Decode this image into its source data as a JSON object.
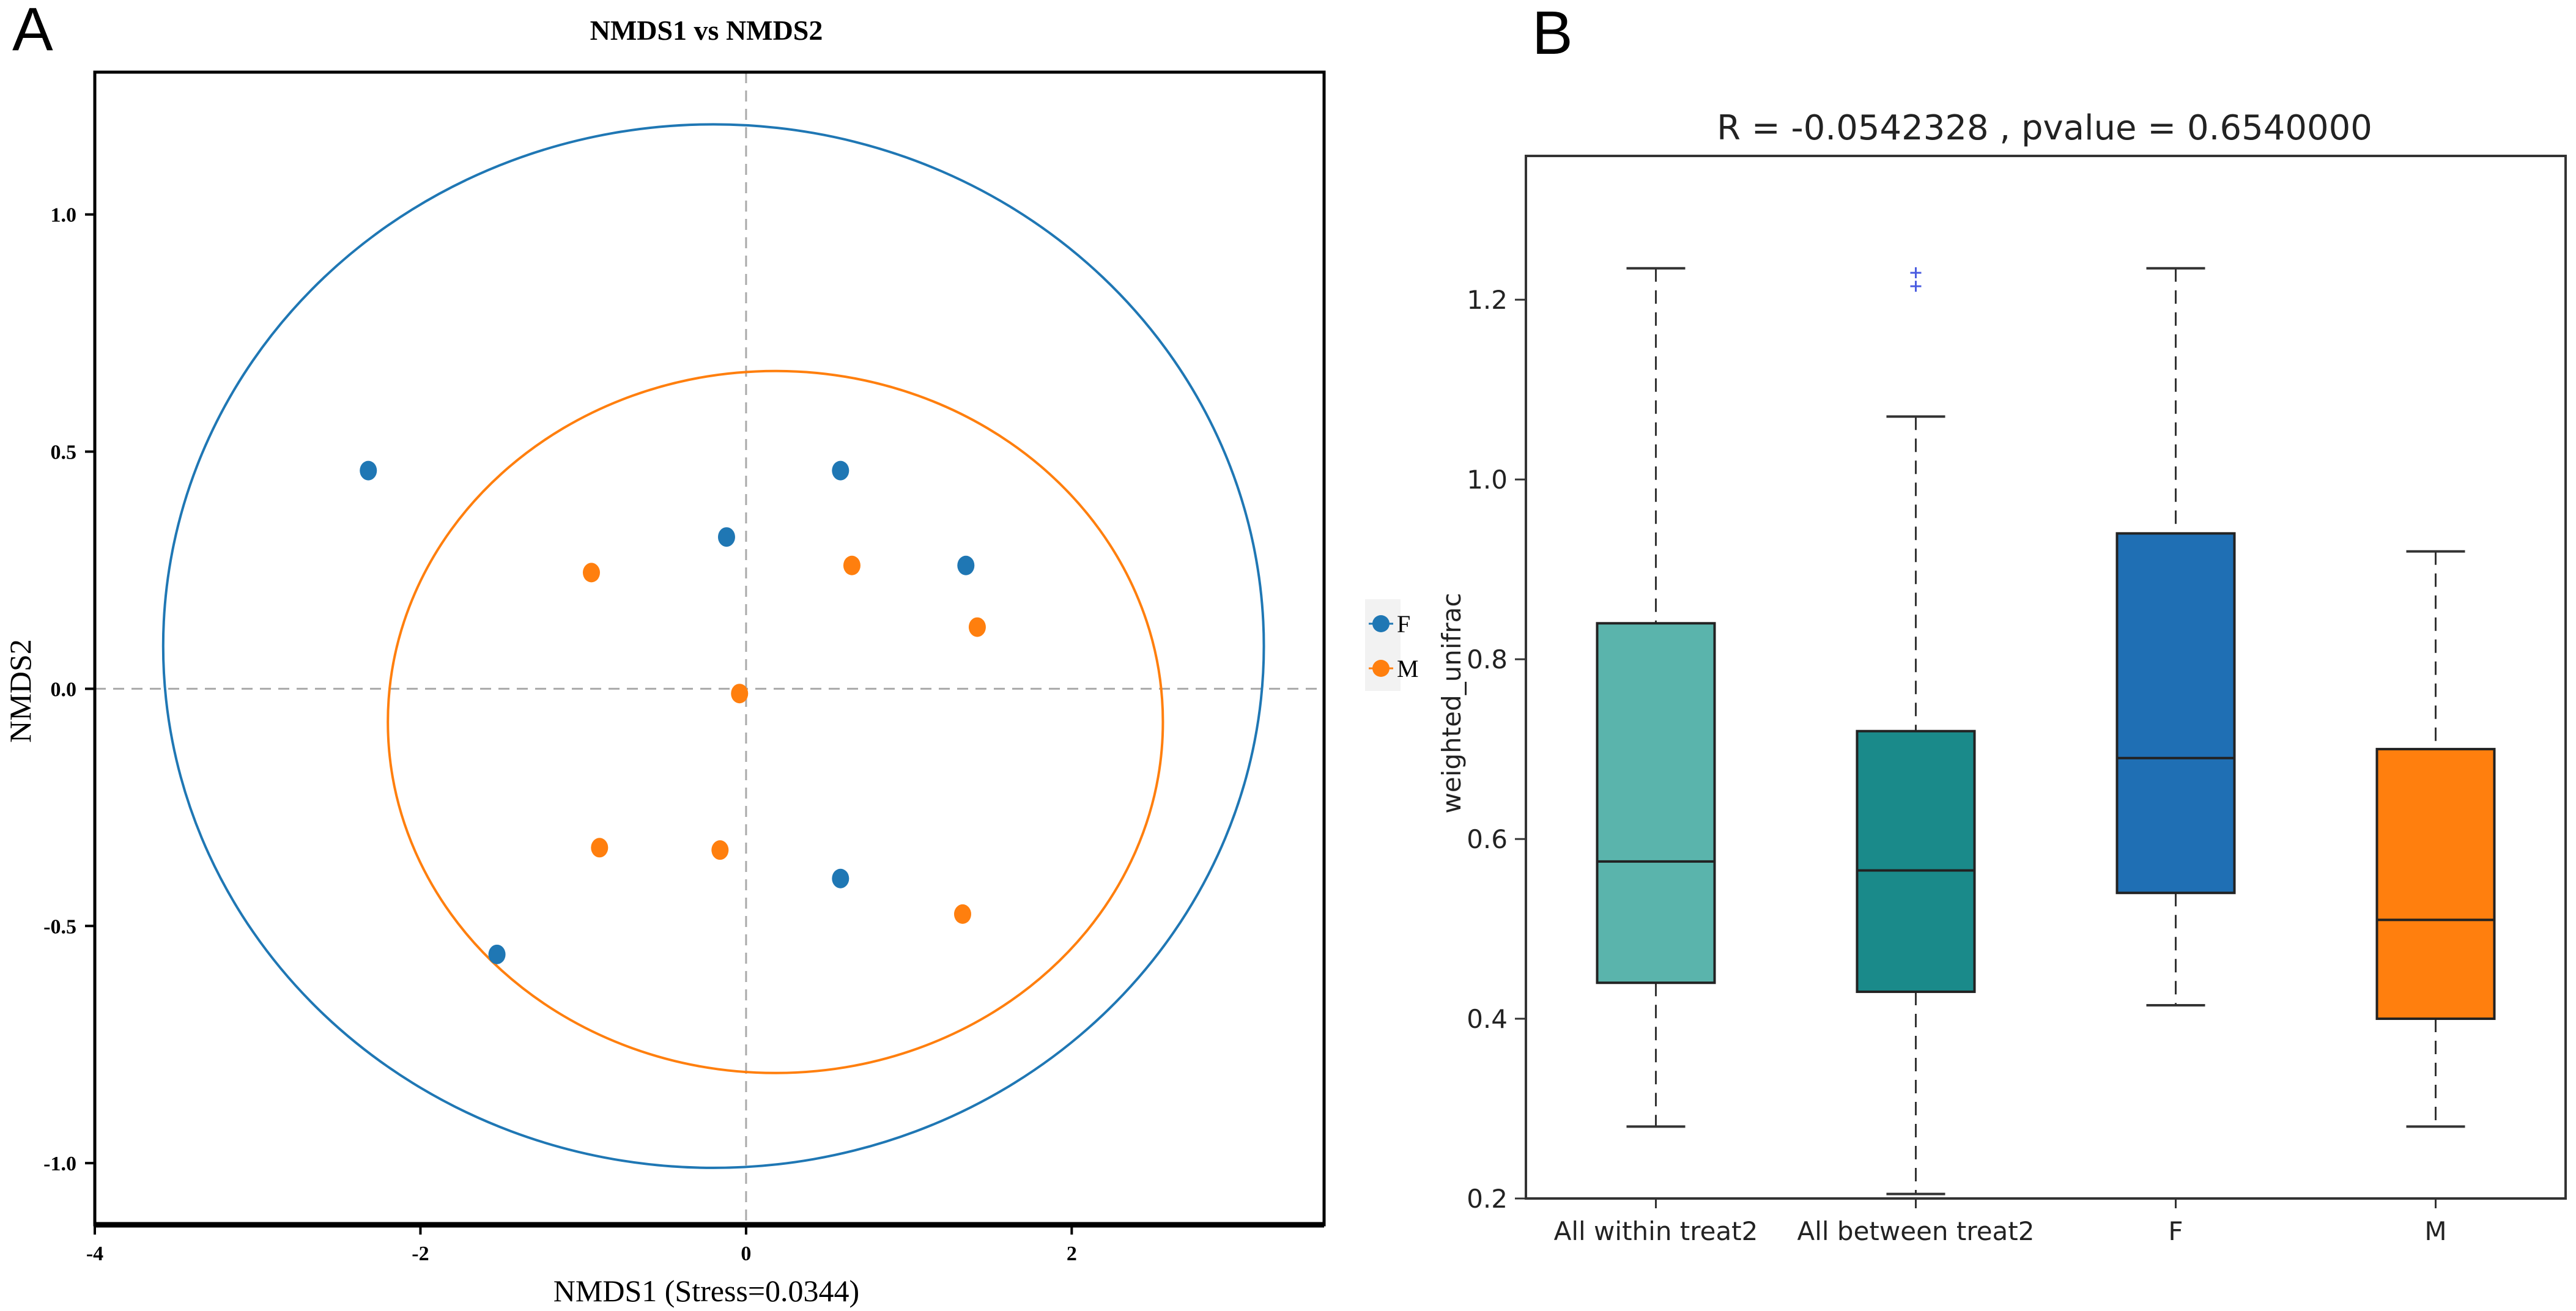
{
  "chart_data": [
    {
      "panel": "A",
      "type": "scatter",
      "title": "NMDS1 vs NMDS2",
      "xlabel": "NMDS1 (Stress=0.0344)",
      "ylabel": "NMDS2",
      "xlim": [
        -4,
        3.55
      ],
      "ylim": [
        -1.13,
        1.3
      ],
      "xticks": [
        -4,
        -2,
        0,
        2
      ],
      "xtick_labels": [
        "-4",
        "-2",
        "0",
        "2"
      ],
      "yticks": [
        -1.0,
        -0.5,
        0.0,
        0.5,
        1.0
      ],
      "ytick_labels": [
        "-1.0",
        "-0.5",
        "0.0",
        "0.5",
        "1.0"
      ],
      "reference_lines": {
        "x": 0,
        "y": 0,
        "style": "dashed"
      },
      "legend": {
        "placement": "right",
        "entries": [
          "F",
          "M"
        ]
      },
      "series": [
        {
          "name": "F",
          "color": "#1f77b4",
          "points": [
            [
              -2.32,
              0.46
            ],
            [
              0.58,
              0.46
            ],
            [
              -0.12,
              0.32
            ],
            [
              1.35,
              0.26
            ],
            [
              0.58,
              -0.4
            ],
            [
              -1.53,
              -0.56
            ]
          ],
          "ellipse": {
            "cx": -0.2,
            "cy": 0.09,
            "rx": 3.38,
            "ry": 1.1
          }
        },
        {
          "name": "M",
          "color": "#ff7f0e",
          "points": [
            [
              -0.95,
              0.245
            ],
            [
              0.65,
              0.26
            ],
            [
              1.42,
              0.13
            ],
            [
              -0.04,
              -0.01
            ],
            [
              -0.9,
              -0.335
            ],
            [
              -0.16,
              -0.34
            ],
            [
              1.33,
              -0.475
            ]
          ],
          "ellipse": {
            "cx": 0.18,
            "cy": -0.07,
            "rx": 2.38,
            "ry": 0.74
          }
        }
      ]
    },
    {
      "panel": "B",
      "type": "box",
      "title": "R = -0.0542328 , pvalue = 0.6540000",
      "xlabel": "",
      "ylabel": "weighted_unifrac",
      "ylim": [
        0.2,
        1.36
      ],
      "yticks": [
        0.2,
        0.4,
        0.6,
        0.8,
        1.0,
        1.2
      ],
      "ytick_labels": [
        "0.2",
        "0.4",
        "0.6",
        "0.8",
        "1.0",
        "1.2"
      ],
      "categories": [
        "All within treat2",
        "All between treat2",
        "F",
        "M"
      ],
      "boxes": [
        {
          "name": "All within treat2",
          "color": "#5ab4ac",
          "whislo": 0.28,
          "q1": 0.44,
          "median": 0.575,
          "q3": 0.84,
          "whishi": 1.235,
          "fliers": []
        },
        {
          "name": "All between treat2",
          "color": "#1a8a8a",
          "whislo": 0.205,
          "q1": 0.43,
          "median": 0.565,
          "q3": 0.72,
          "whishi": 1.07,
          "fliers": [
            1.215,
            1.23
          ]
        },
        {
          "name": "F",
          "color": "#1f6fb4",
          "whislo": 0.415,
          "q1": 0.54,
          "median": 0.69,
          "q3": 0.94,
          "whishi": 1.235,
          "fliers": []
        },
        {
          "name": "M",
          "color": "#ff7f0e",
          "whislo": 0.28,
          "q1": 0.4,
          "median": 0.51,
          "q3": 0.7,
          "whishi": 0.92,
          "fliers": []
        }
      ]
    }
  ]
}
